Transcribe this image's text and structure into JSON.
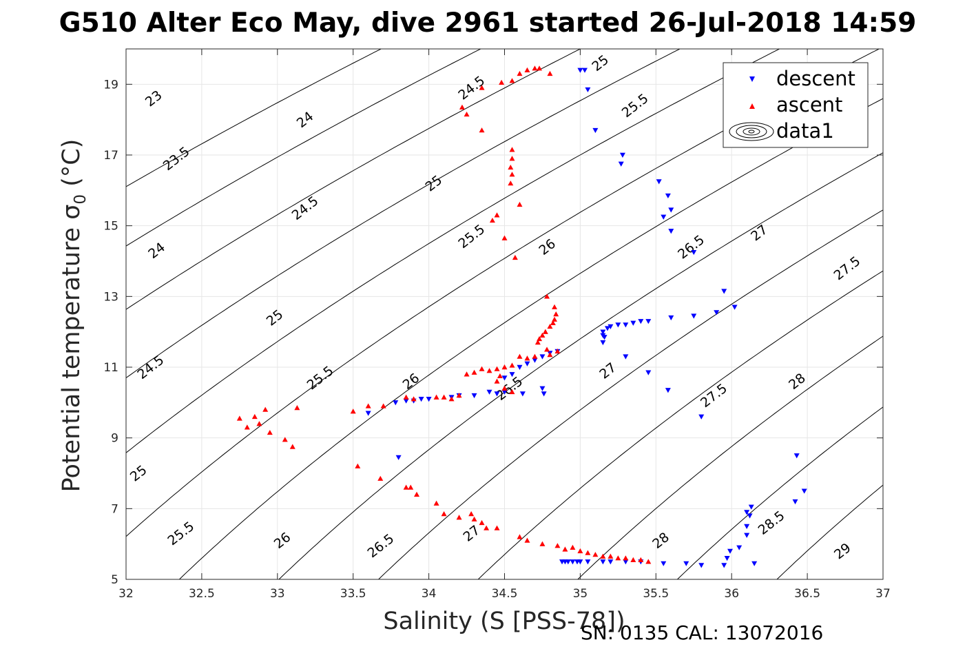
{
  "chart_data": {
    "type": "scatter",
    "title": "G510 Alter Eco May, dive 2961 started 26-Jul-2018 14:59",
    "xlabel": "Salinity (S [PSS-78])",
    "ylabel": "Potential temperature σ",
    "ylabel_sub": "0",
    "ylabel_unit": " (°C)",
    "footer": "SN: 0135  CAL: 13072016",
    "xlim": [
      32,
      37
    ],
    "ylim": [
      5,
      20
    ],
    "grid": true,
    "legend_position": "top-right",
    "x_ticks": [
      32,
      32.5,
      33,
      33.5,
      34,
      34.5,
      35,
      35.5,
      36,
      36.5,
      37
    ],
    "x_tick_labels": [
      "32",
      "32.5",
      "33",
      "33.5",
      "34",
      "34.5",
      "35",
      "35.5",
      "36",
      "36.5",
      "37"
    ],
    "y_ticks": [
      5,
      7,
      9,
      11,
      13,
      15,
      17,
      19
    ],
    "y_tick_labels": [
      "5",
      "7",
      "9",
      "11",
      "13",
      "15",
      "17",
      "19"
    ],
    "colors": {
      "descent": "#0000ff",
      "ascent": "#ff0000",
      "contour": "#000000",
      "grid": "#e6e6e6"
    },
    "contours": {
      "levels": [
        23,
        23.5,
        24,
        24.5,
        25,
        25.5,
        26,
        26.5,
        27,
        27.5,
        28,
        28.5,
        29
      ],
      "labels": [
        {
          "text": "23",
          "x": 32.2,
          "y": 18.5
        },
        {
          "text": "23.5",
          "x": 32.35,
          "y": 16.8
        },
        {
          "text": "24",
          "x": 33.2,
          "y": 17.9
        },
        {
          "text": "24.5",
          "x": 34.3,
          "y": 18.8
        },
        {
          "text": "25",
          "x": 35.15,
          "y": 19.5
        },
        {
          "text": "24",
          "x": 32.22,
          "y": 14.2
        },
        {
          "text": "24.5",
          "x": 33.2,
          "y": 15.4
        },
        {
          "text": "25",
          "x": 34.05,
          "y": 16.1
        },
        {
          "text": "25.5",
          "x": 35.38,
          "y": 18.3
        },
        {
          "text": "24.5",
          "x": 32.18,
          "y": 10.9
        },
        {
          "text": "25",
          "x": 33.0,
          "y": 12.3
        },
        {
          "text": "25.5",
          "x": 34.3,
          "y": 14.6
        },
        {
          "text": "26",
          "x": 34.8,
          "y": 14.3
        },
        {
          "text": "26.5",
          "x": 35.75,
          "y": 14.3
        },
        {
          "text": "27",
          "x": 36.2,
          "y": 14.7
        },
        {
          "text": "27.5",
          "x": 36.78,
          "y": 13.7
        },
        {
          "text": "25",
          "x": 32.1,
          "y": 7.9
        },
        {
          "text": "25.5",
          "x": 33.3,
          "y": 10.6
        },
        {
          "text": "26",
          "x": 33.9,
          "y": 10.5
        },
        {
          "text": "26.5",
          "x": 34.55,
          "y": 10.3
        },
        {
          "text": "27",
          "x": 35.2,
          "y": 10.8
        },
        {
          "text": "27.5",
          "x": 35.9,
          "y": 10.1
        },
        {
          "text": "28",
          "x": 36.45,
          "y": 10.5
        },
        {
          "text": "25.5",
          "x": 32.38,
          "y": 6.2
        },
        {
          "text": "26",
          "x": 33.05,
          "y": 6.0
        },
        {
          "text": "26.5",
          "x": 33.7,
          "y": 5.85
        },
        {
          "text": "27",
          "x": 34.3,
          "y": 6.2
        },
        {
          "text": "28",
          "x": 35.55,
          "y": 6.0
        },
        {
          "text": "28.5",
          "x": 36.28,
          "y": 6.5
        },
        {
          "text": "29",
          "x": 36.75,
          "y": 5.7
        }
      ]
    },
    "series": [
      {
        "name": "descent",
        "marker": "triangle-down",
        "points": [
          [
            35.0,
            19.4
          ],
          [
            35.03,
            19.4
          ],
          [
            35.05,
            18.85
          ],
          [
            35.1,
            17.7
          ],
          [
            35.28,
            17.0
          ],
          [
            35.27,
            16.75
          ],
          [
            35.52,
            16.25
          ],
          [
            35.58,
            15.85
          ],
          [
            35.6,
            15.45
          ],
          [
            35.55,
            15.25
          ],
          [
            35.6,
            14.85
          ],
          [
            35.75,
            14.25
          ],
          [
            35.95,
            13.15
          ],
          [
            36.02,
            12.7
          ],
          [
            35.9,
            12.55
          ],
          [
            35.75,
            12.45
          ],
          [
            35.6,
            12.4
          ],
          [
            35.45,
            12.3
          ],
          [
            35.4,
            12.3
          ],
          [
            35.35,
            12.25
          ],
          [
            35.3,
            12.2
          ],
          [
            35.25,
            12.2
          ],
          [
            35.2,
            12.15
          ],
          [
            35.18,
            12.1
          ],
          [
            35.15,
            12.0
          ],
          [
            35.15,
            11.9
          ],
          [
            35.16,
            11.85
          ],
          [
            35.15,
            11.7
          ],
          [
            35.3,
            11.3
          ],
          [
            35.45,
            10.85
          ],
          [
            35.58,
            10.35
          ],
          [
            35.8,
            9.6
          ],
          [
            34.75,
            10.4
          ],
          [
            34.76,
            10.25
          ],
          [
            34.62,
            10.25
          ],
          [
            34.5,
            10.3
          ],
          [
            34.45,
            10.25
          ],
          [
            34.4,
            10.3
          ],
          [
            34.3,
            10.2
          ],
          [
            34.2,
            10.2
          ],
          [
            34.15,
            10.15
          ],
          [
            34.0,
            10.1
          ],
          [
            33.95,
            10.1
          ],
          [
            33.9,
            10.05
          ],
          [
            33.85,
            10.05
          ],
          [
            33.78,
            10.0
          ],
          [
            33.6,
            9.7
          ],
          [
            33.8,
            8.45
          ],
          [
            34.5,
            10.7
          ],
          [
            34.55,
            10.8
          ],
          [
            34.6,
            11.0
          ],
          [
            34.65,
            11.1
          ],
          [
            34.7,
            11.2
          ],
          [
            34.75,
            11.3
          ],
          [
            34.8,
            11.4
          ],
          [
            34.85,
            11.45
          ],
          [
            34.88,
            5.5
          ],
          [
            34.9,
            5.5
          ],
          [
            34.92,
            5.5
          ],
          [
            34.95,
            5.5
          ],
          [
            34.98,
            5.5
          ],
          [
            35.0,
            5.5
          ],
          [
            35.05,
            5.5
          ],
          [
            35.15,
            5.5
          ],
          [
            35.2,
            5.5
          ],
          [
            35.3,
            5.5
          ],
          [
            35.4,
            5.5
          ],
          [
            35.55,
            5.45
          ],
          [
            35.7,
            5.45
          ],
          [
            35.8,
            5.4
          ],
          [
            35.95,
            5.4
          ],
          [
            35.97,
            5.6
          ],
          [
            35.99,
            5.8
          ],
          [
            36.05,
            5.9
          ],
          [
            36.1,
            6.25
          ],
          [
            36.1,
            6.5
          ],
          [
            36.12,
            6.8
          ],
          [
            36.1,
            6.9
          ],
          [
            36.13,
            7.05
          ],
          [
            36.15,
            5.45
          ],
          [
            36.42,
            7.2
          ],
          [
            36.48,
            7.5
          ],
          [
            36.43,
            8.5
          ]
        ]
      },
      {
        "name": "ascent",
        "marker": "triangle-up",
        "points": [
          [
            34.22,
            18.35
          ],
          [
            34.25,
            18.15
          ],
          [
            34.35,
            17.7
          ],
          [
            34.35,
            18.9
          ],
          [
            34.48,
            19.05
          ],
          [
            34.55,
            19.1
          ],
          [
            34.6,
            19.3
          ],
          [
            34.65,
            19.4
          ],
          [
            34.7,
            19.45
          ],
          [
            34.73,
            19.45
          ],
          [
            34.8,
            19.3
          ],
          [
            34.55,
            17.15
          ],
          [
            34.55,
            16.9
          ],
          [
            34.54,
            16.65
          ],
          [
            34.55,
            16.45
          ],
          [
            34.54,
            16.2
          ],
          [
            34.6,
            15.6
          ],
          [
            34.45,
            15.3
          ],
          [
            34.42,
            15.15
          ],
          [
            34.5,
            14.65
          ],
          [
            34.57,
            14.1
          ],
          [
            34.78,
            13.0
          ],
          [
            34.83,
            12.7
          ],
          [
            34.84,
            12.5
          ],
          [
            34.83,
            12.35
          ],
          [
            34.82,
            12.25
          ],
          [
            34.8,
            12.15
          ],
          [
            34.77,
            12.0
          ],
          [
            34.75,
            11.9
          ],
          [
            34.73,
            11.8
          ],
          [
            34.72,
            11.7
          ],
          [
            34.78,
            11.5
          ],
          [
            34.85,
            11.45
          ],
          [
            34.8,
            11.35
          ],
          [
            34.7,
            11.3
          ],
          [
            34.65,
            11.25
          ],
          [
            34.6,
            11.3
          ],
          [
            34.55,
            11.05
          ],
          [
            34.5,
            11.0
          ],
          [
            34.45,
            10.95
          ],
          [
            34.4,
            10.9
          ],
          [
            34.35,
            10.95
          ],
          [
            34.3,
            10.85
          ],
          [
            34.25,
            10.8
          ],
          [
            34.47,
            10.75
          ],
          [
            34.45,
            10.6
          ],
          [
            34.5,
            10.4
          ],
          [
            34.55,
            10.3
          ],
          [
            34.2,
            10.2
          ],
          [
            34.15,
            10.1
          ],
          [
            34.1,
            10.15
          ],
          [
            34.05,
            10.15
          ],
          [
            33.9,
            10.1
          ],
          [
            33.85,
            10.15
          ],
          [
            33.6,
            9.9
          ],
          [
            33.5,
            9.75
          ],
          [
            33.7,
            9.9
          ],
          [
            32.75,
            9.55
          ],
          [
            32.8,
            9.3
          ],
          [
            32.85,
            9.6
          ],
          [
            32.88,
            9.4
          ],
          [
            32.92,
            9.8
          ],
          [
            32.95,
            9.15
          ],
          [
            33.05,
            8.95
          ],
          [
            33.1,
            8.75
          ],
          [
            33.13,
            9.85
          ],
          [
            33.53,
            8.2
          ],
          [
            33.68,
            7.85
          ],
          [
            33.85,
            7.6
          ],
          [
            33.88,
            7.6
          ],
          [
            33.92,
            7.4
          ],
          [
            34.05,
            7.15
          ],
          [
            34.1,
            6.85
          ],
          [
            34.2,
            6.75
          ],
          [
            34.28,
            6.85
          ],
          [
            34.3,
            6.7
          ],
          [
            34.35,
            6.6
          ],
          [
            34.38,
            6.45
          ],
          [
            34.45,
            6.45
          ],
          [
            34.6,
            6.2
          ],
          [
            34.65,
            6.1
          ],
          [
            34.75,
            6.0
          ],
          [
            34.85,
            5.95
          ],
          [
            34.9,
            5.85
          ],
          [
            34.95,
            5.9
          ],
          [
            35.0,
            5.8
          ],
          [
            35.05,
            5.75
          ],
          [
            35.1,
            5.7
          ],
          [
            35.15,
            5.65
          ],
          [
            35.2,
            5.65
          ],
          [
            35.25,
            5.6
          ],
          [
            35.3,
            5.6
          ],
          [
            35.35,
            5.55
          ],
          [
            35.4,
            5.55
          ],
          [
            35.45,
            5.5
          ]
        ]
      },
      {
        "name": "data1",
        "marker": "contour-glyph",
        "points": []
      }
    ]
  }
}
